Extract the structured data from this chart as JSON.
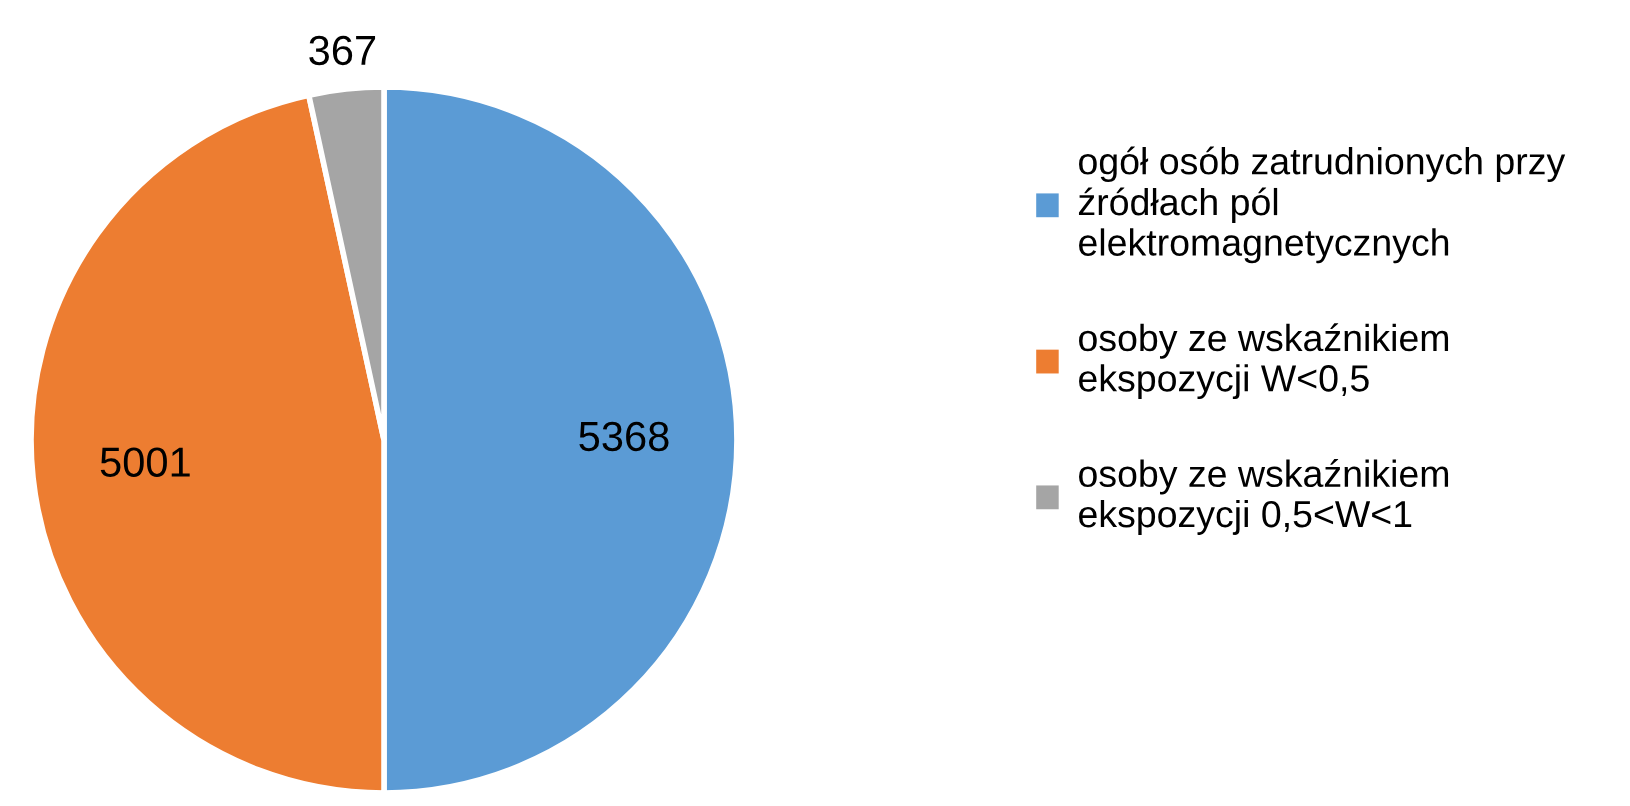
{
  "chart_data": {
    "type": "pie",
    "categories": [
      "ogół osób zatrudnionych przy\nźródłach pól\nelektromagnetycznych",
      "osoby ze wskaźnikiem\nekspozycji W<0,5",
      "osoby ze wskaźnikiem\nekspozycji 0,5<W<1"
    ],
    "values": [
      5368,
      5001,
      367
    ],
    "colors": [
      "#5b9bd5",
      "#ed7d31",
      "#a5a5a5"
    ],
    "data_labels": true,
    "legend": "right"
  }
}
